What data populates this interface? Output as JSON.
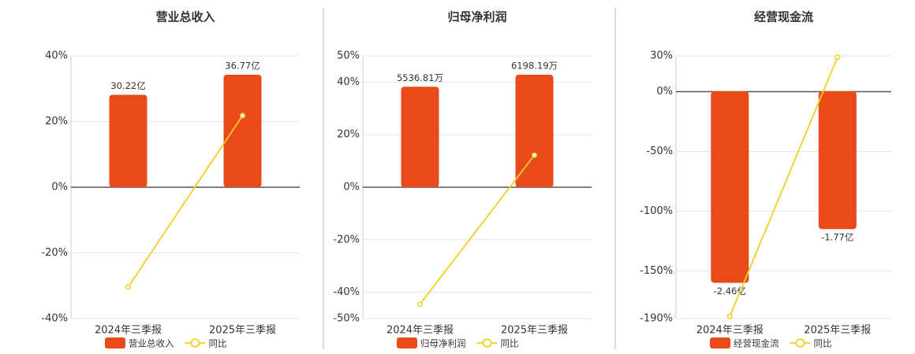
{
  "chart_data": [
    {
      "type": "bar",
      "title": "营业总收入",
      "categories": [
        "2024年三季报",
        "2025年三季报"
      ],
      "series": [
        {
          "name": "营业总收入",
          "color": "#e84a1a",
          "axis": "y2",
          "values": [
            30.22,
            36.77
          ],
          "value_labels": [
            "30.22亿",
            "36.77亿"
          ]
        },
        {
          "name": "同比",
          "type": "line",
          "color": "#f0d020",
          "values": [
            -30.4,
            21.8
          ]
        }
      ],
      "ylim": [
        -40,
        40
      ],
      "yticks": [
        {
          "value": -40,
          "label": "-40%"
        },
        {
          "value": -20,
          "label": "-20%"
        },
        {
          "value": 0,
          "label": "0%"
        },
        {
          "value": 20,
          "label": "20%"
        },
        {
          "value": 40,
          "label": "40%"
        }
      ],
      "y2lim": [
        -42.94,
        42.94
      ],
      "grid": true
    },
    {
      "type": "bar",
      "title": "归母净利润",
      "categories": [
        "2024年三季报",
        "2025年三季报"
      ],
      "series": [
        {
          "name": "归母净利润",
          "color": "#e84a1a",
          "axis": "y2",
          "values": [
            5536.81,
            6198.19
          ],
          "value_labels": [
            "5536.81万",
            "6198.19万"
          ]
        },
        {
          "name": "同比",
          "type": "line",
          "color": "#f0d020",
          "values": [
            -44.5,
            12.2
          ]
        }
      ],
      "ylim": [
        -50,
        50
      ],
      "yticks": [
        {
          "value": -50,
          "label": "-50%"
        },
        {
          "value": -40,
          "label": "-40%"
        },
        {
          "value": -20,
          "label": "-20%"
        },
        {
          "value": 0,
          "label": "0%"
        },
        {
          "value": 20,
          "label": "20%"
        },
        {
          "value": 40,
          "label": "40%"
        },
        {
          "value": 50,
          "label": "50%"
        }
      ],
      "y2lim": [
        -7238,
        7238
      ],
      "grid": true
    },
    {
      "type": "bar",
      "title": "经营现金流",
      "categories": [
        "2024年三季报",
        "2025年三季报"
      ],
      "series": [
        {
          "name": "经营现金流",
          "color": "#e84a1a",
          "axis": "y2",
          "values": [
            -2.46,
            -1.77
          ],
          "value_labels": [
            "-2.46亿",
            "-1.77亿"
          ]
        },
        {
          "name": "同比",
          "type": "line",
          "color": "#f0d020",
          "values": [
            -188.2,
            28.9
          ]
        }
      ],
      "ylim": [
        -190,
        30
      ],
      "yticks": [
        {
          "value": -190,
          "label": "-190%"
        },
        {
          "value": -150,
          "label": "-150%"
        },
        {
          "value": -100,
          "label": "-100%"
        },
        {
          "value": -50,
          "label": "-50%"
        },
        {
          "value": 0,
          "label": "0%"
        },
        {
          "value": 30,
          "label": "30%"
        }
      ],
      "y2lim": [
        -2.92,
        0.455
      ],
      "grid": true
    }
  ]
}
